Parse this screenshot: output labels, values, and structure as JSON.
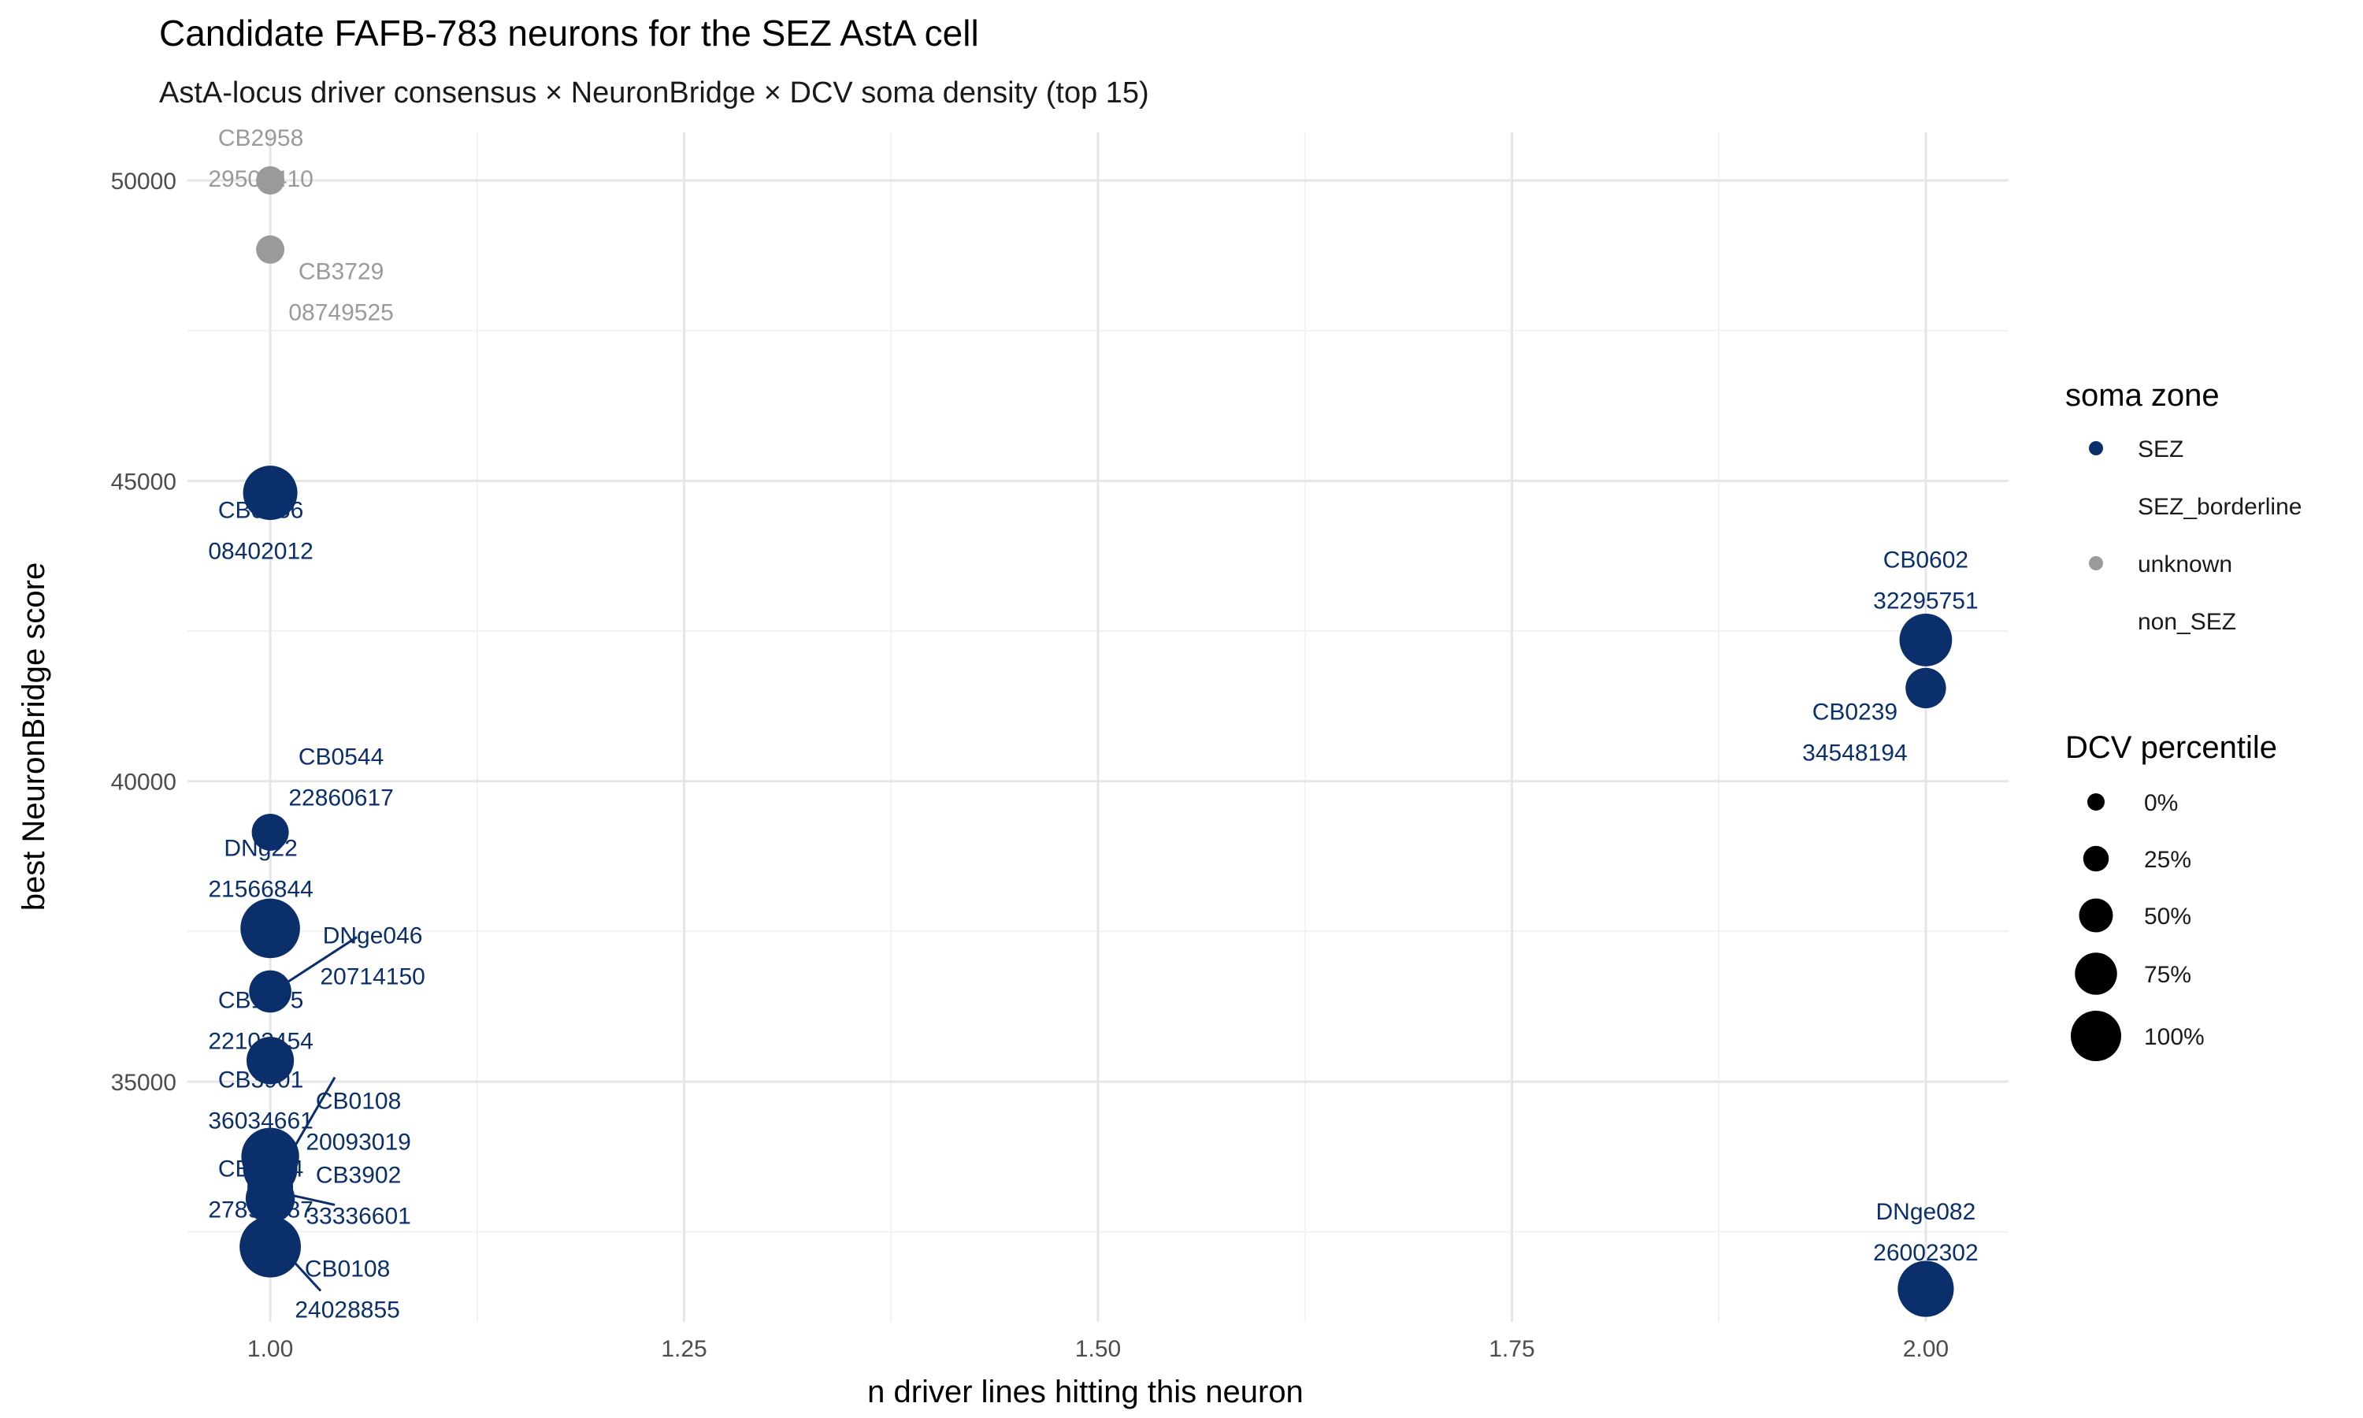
{
  "chart_data": {
    "type": "scatter",
    "title": "Candidate FAFB-783 neurons for the SEZ AstA cell",
    "subtitle": "AstA-locus driver consensus × NeuronBridge × DCV soma density (top 15)",
    "xlabel": "n driver lines hitting this neuron",
    "ylabel": "best NeuronBridge score",
    "xlim": [
      0.95,
      2.05
    ],
    "ylim": [
      31000,
      50800
    ],
    "x_ticks": [
      "1.00",
      "1.25",
      "1.50",
      "1.75",
      "2.00"
    ],
    "x_tick_values": [
      1.0,
      1.25,
      1.5,
      1.75,
      2.0
    ],
    "y_ticks": [
      "35000",
      "40000",
      "45000",
      "50000"
    ],
    "y_tick_values": [
      35000,
      40000,
      45000,
      50000
    ],
    "grid": true,
    "legend_position": "right",
    "colors": {
      "SEZ": "#0b2f6b",
      "unknown": "#9a9a9a"
    },
    "points": [
      {
        "name": "CB2958",
        "id": "29500410",
        "x": 1,
        "y": 50000,
        "zone": "unknown",
        "dcv": 0
      },
      {
        "name": "CB3729",
        "id": "08749525",
        "x": 1,
        "y": 48850,
        "zone": "unknown",
        "dcv": 0
      },
      {
        "name": "CB0456",
        "id": "08402012",
        "x": 1,
        "y": 44800,
        "zone": "SEZ",
        "dcv": 75
      },
      {
        "name": "CB0544",
        "id": "22860617",
        "x": 1,
        "y": 39150,
        "zone": "SEZ",
        "dcv": 25
      },
      {
        "name": "DNg22",
        "id": "21566844",
        "x": 1,
        "y": 37550,
        "zone": "SEZ",
        "dcv": 90
      },
      {
        "name": "DNge046",
        "id": "20714150",
        "x": 1,
        "y": 36500,
        "zone": "SEZ",
        "dcv": 40
      },
      {
        "name": "CB1475",
        "id": "22102454",
        "x": 1,
        "y": 35350,
        "zone": "SEZ",
        "dcv": 55
      },
      {
        "name": "CB3901",
        "id": "36034661",
        "x": 1,
        "y": 33750,
        "zone": "SEZ",
        "dcv": 85
      },
      {
        "name": "CB0108",
        "id": "20093019",
        "x": 1,
        "y": 33550,
        "zone": "SEZ",
        "dcv": 75
      },
      {
        "name": "CB3902",
        "id": "33336601",
        "x": 1,
        "y": 33250,
        "zone": "SEZ",
        "dcv": 50
      },
      {
        "name": "CB0614",
        "id": "27899387",
        "x": 1,
        "y": 33050,
        "zone": "SEZ",
        "dcv": 60
      },
      {
        "name": "CB0108",
        "id": "24028855",
        "x": 1,
        "y": 32250,
        "zone": "SEZ",
        "dcv": 95
      },
      {
        "name": "CB0602",
        "id": "32295751",
        "x": 2,
        "y": 42350,
        "zone": "SEZ",
        "dcv": 70
      },
      {
        "name": "CB0239",
        "id": "34548194",
        "x": 2,
        "y": 41550,
        "zone": "SEZ",
        "dcv": 35
      },
      {
        "name": "DNge082",
        "id": "26002302",
        "x": 2,
        "y": 31550,
        "zone": "SEZ",
        "dcv": 80
      }
    ]
  },
  "legend": {
    "color_title": "soma zone",
    "color_items": [
      {
        "label": "SEZ",
        "color": "#0b2f6b",
        "shown": true
      },
      {
        "label": "SEZ_borderline",
        "color": "#ffffff",
        "shown": false
      },
      {
        "label": "unknown",
        "color": "#9a9a9a",
        "shown": true
      },
      {
        "label": "non_SEZ",
        "color": "#ffffff",
        "shown": false
      }
    ],
    "size_title": "DCV percentile",
    "size_items": [
      {
        "label": "0%",
        "value": 0
      },
      {
        "label": "25%",
        "value": 25
      },
      {
        "label": "50%",
        "value": 50
      },
      {
        "label": "75%",
        "value": 75
      },
      {
        "label": "100%",
        "value": 100
      }
    ]
  }
}
